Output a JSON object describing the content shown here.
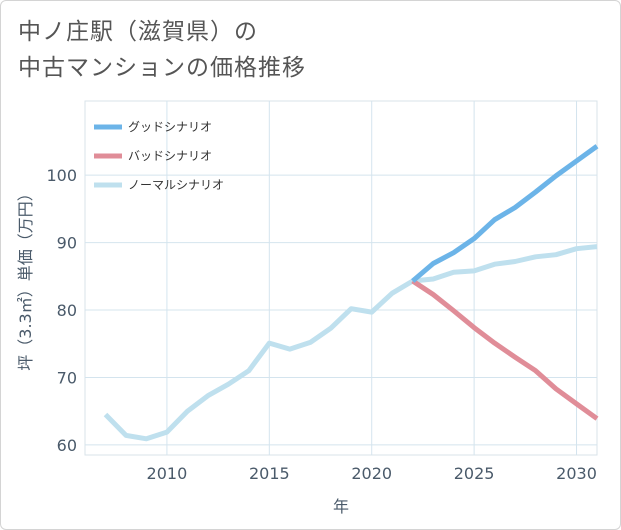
{
  "title_line1": "中ノ庄駅（滋賀県）の",
  "title_line2": "中古マンションの価格推移",
  "chart_data": {
    "type": "line",
    "title": "中ノ庄駅（滋賀県）の中古マンションの価格推移",
    "xlabel": "年",
    "ylabel": "坪（3.3㎡）単価（万円）",
    "xlim": [
      2006,
      2031
    ],
    "ylim": [
      58.5,
      111
    ],
    "xticks": [
      2010,
      2015,
      2020,
      2025,
      2030
    ],
    "yticks": [
      60,
      70,
      80,
      90,
      100
    ],
    "grid": true,
    "legend_position": "top-left",
    "series": [
      {
        "name": "グッドシナリオ",
        "color": "#6cb4e8",
        "x": [
          2022,
          2023,
          2024,
          2025,
          2026,
          2027,
          2028,
          2029,
          2030,
          2031
        ],
        "values": [
          84.3,
          86.9,
          88.5,
          90.6,
          93.4,
          95.2,
          97.5,
          99.9,
          102.1,
          104.3
        ]
      },
      {
        "name": "バッドシナリオ",
        "color": "#e08d98",
        "x": [
          2022,
          2023,
          2024,
          2025,
          2026,
          2027,
          2028,
          2029,
          2030,
          2031
        ],
        "values": [
          84.3,
          82.3,
          79.9,
          77.4,
          75.1,
          73.0,
          71.0,
          68.3,
          66.1,
          63.9
        ]
      },
      {
        "name": "ノーマルシナリオ",
        "color": "#bfe0ee",
        "x": [
          2007,
          2008,
          2009,
          2010,
          2011,
          2012,
          2013,
          2014,
          2015,
          2016,
          2017,
          2018,
          2019,
          2020,
          2021,
          2022,
          2023,
          2024,
          2025,
          2026,
          2027,
          2028,
          2029,
          2030,
          2031
        ],
        "values": [
          64.5,
          61.4,
          60.9,
          61.9,
          65.0,
          67.3,
          69.0,
          71.0,
          75.1,
          74.2,
          75.2,
          77.3,
          80.2,
          79.7,
          82.5,
          84.3,
          84.6,
          85.6,
          85.8,
          86.8,
          87.2,
          87.9,
          88.2,
          89.1,
          89.4
        ]
      }
    ]
  }
}
